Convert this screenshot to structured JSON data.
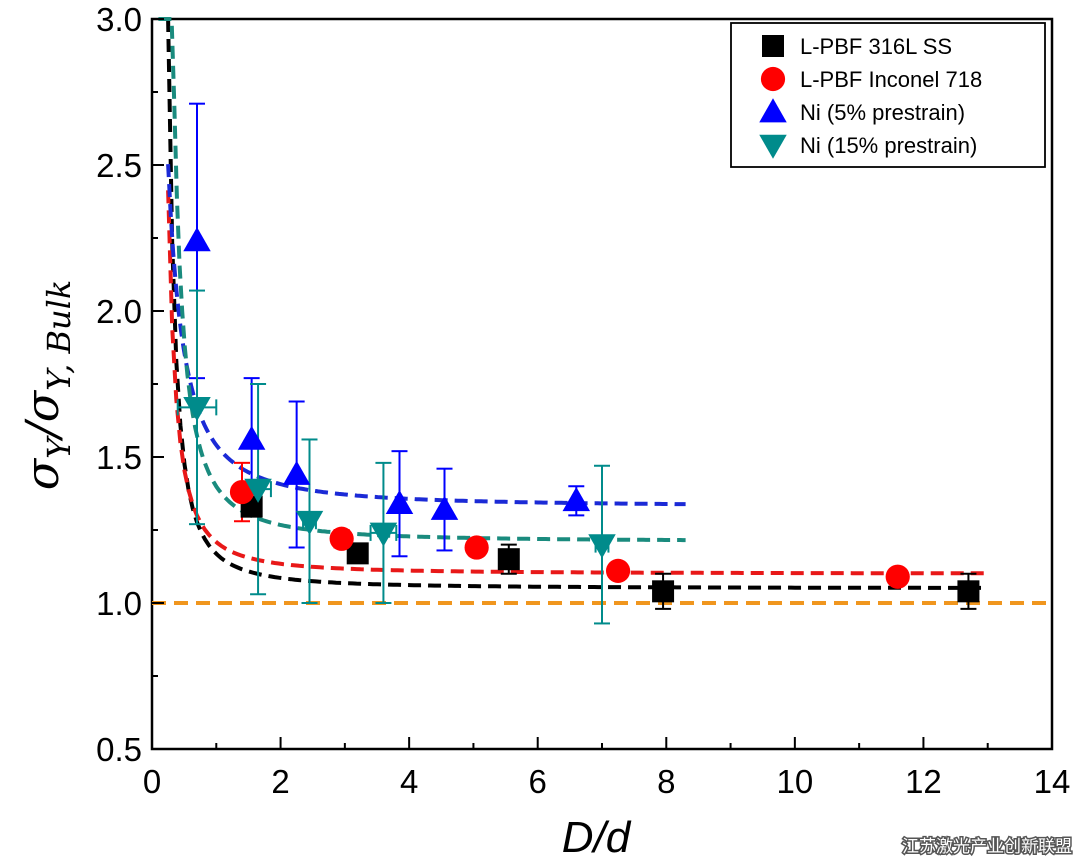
{
  "chart_data": {
    "type": "scatter",
    "title": "",
    "xlabel": "D/d",
    "ylabel": "σY/σY,Bulk",
    "ylabel_parts": {
      "main": "σ",
      "sub1": "Y",
      "slash": "/",
      "main2": "σ",
      "sub2": "Y, Bulk"
    },
    "xlim": [
      0,
      14
    ],
    "ylim": [
      0.5,
      3.0
    ],
    "xticks": [
      0,
      2,
      4,
      6,
      8,
      10,
      12,
      14
    ],
    "yticks": [
      0.5,
      1.0,
      1.5,
      2.0,
      2.5,
      3.0
    ],
    "xtick_labels": [
      "0",
      "2",
      "4",
      "6",
      "8",
      "10",
      "12",
      "14"
    ],
    "ytick_labels": [
      "0.5",
      "1.0",
      "1.5",
      "2.0",
      "2.5",
      "3.0"
    ],
    "grid": false,
    "legend_position": "top-right",
    "series": [
      {
        "name": "L-PBF 316L SS",
        "marker": "square",
        "color": "#000000",
        "points": [
          {
            "x": 1.55,
            "y": 1.33,
            "yerr": 0.03,
            "xerr": 0
          },
          {
            "x": 3.2,
            "y": 1.17,
            "yerr": 0.02,
            "xerr": 0
          },
          {
            "x": 5.55,
            "y": 1.15,
            "yerr": 0.05,
            "xerr": 0
          },
          {
            "x": 7.95,
            "y": 1.04,
            "yerr": 0.06,
            "xerr": 0
          },
          {
            "x": 12.7,
            "y": 1.04,
            "yerr": 0.06,
            "xerr": 0
          }
        ]
      },
      {
        "name": "L-PBF Inconel 718",
        "marker": "circle",
        "color": "#ff0000",
        "points": [
          {
            "x": 1.4,
            "y": 1.38,
            "yerr": 0.1,
            "xerr": 0
          },
          {
            "x": 2.95,
            "y": 1.22,
            "yerr": 0.03,
            "xerr": 0
          },
          {
            "x": 5.05,
            "y": 1.19,
            "yerr": 0.02,
            "xerr": 0
          },
          {
            "x": 7.25,
            "y": 1.11,
            "yerr": 0.02,
            "xerr": 0
          },
          {
            "x": 11.6,
            "y": 1.09,
            "yerr": 0.02,
            "xerr": 0
          }
        ]
      },
      {
        "name": "Ni (5% prestrain)",
        "marker": "triangle-up",
        "color": "#0000ff",
        "points": [
          {
            "x": 0.7,
            "y": 2.24,
            "yerr": 0.47,
            "xerr": 0
          },
          {
            "x": 1.55,
            "y": 1.56,
            "yerr": 0.21,
            "xerr": 0
          },
          {
            "x": 2.25,
            "y": 1.44,
            "yerr": 0.25,
            "xerr": 0
          },
          {
            "x": 3.85,
            "y": 1.34,
            "yerr": 0.18,
            "xerr": 0
          },
          {
            "x": 4.55,
            "y": 1.32,
            "yerr": 0.14,
            "xerr": 0
          },
          {
            "x": 6.6,
            "y": 1.35,
            "yerr": 0.05,
            "xerr": 0
          }
        ]
      },
      {
        "name": "Ni (15% prestrain)",
        "marker": "triangle-down",
        "color": "#008b8b",
        "points": [
          {
            "x": 0.7,
            "y": 1.67,
            "yerr": 0.4,
            "xerr": 0.3
          },
          {
            "x": 1.65,
            "y": 1.39,
            "yerr": 0.36,
            "xerr": 0.2
          },
          {
            "x": 2.45,
            "y": 1.28,
            "yerr": 0.28,
            "xerr": 0.1
          },
          {
            "x": 3.6,
            "y": 1.24,
            "yerr": 0.24,
            "xerr": 0.2
          },
          {
            "x": 7.0,
            "y": 1.2,
            "yerr": 0.27,
            "xerr": 0.1
          }
        ]
      }
    ],
    "fit_curves": [
      {
        "series": "L-PBF 316L SS",
        "color": "#000000",
        "y_inf": 1.05,
        "a": 0.1,
        "x0": 0.1,
        "x_range": [
          0.25,
          13.0
        ]
      },
      {
        "series": "L-PBF Inconel 718",
        "color": "#e81818",
        "y_inf": 1.1,
        "a": 0.1,
        "x0": 0.05,
        "x_range": [
          0.25,
          13.0
        ]
      },
      {
        "series": "Ni (5% prestrain)",
        "color": "#1b2ad6",
        "y_inf": 1.33,
        "a": 0.26,
        "x0": -0.14,
        "x_range": [
          0.25,
          8.3
        ]
      },
      {
        "series": "Ni (15% prestrain)",
        "color": "#1a8b7e",
        "y_inf": 1.21,
        "a": 0.16,
        "x0": 0.1,
        "x_range": [
          0.1,
          8.3
        ]
      }
    ],
    "reference_line": {
      "y": 1.0,
      "color": "#f0961e"
    }
  },
  "watermark": "江苏激光产业创新联盟"
}
